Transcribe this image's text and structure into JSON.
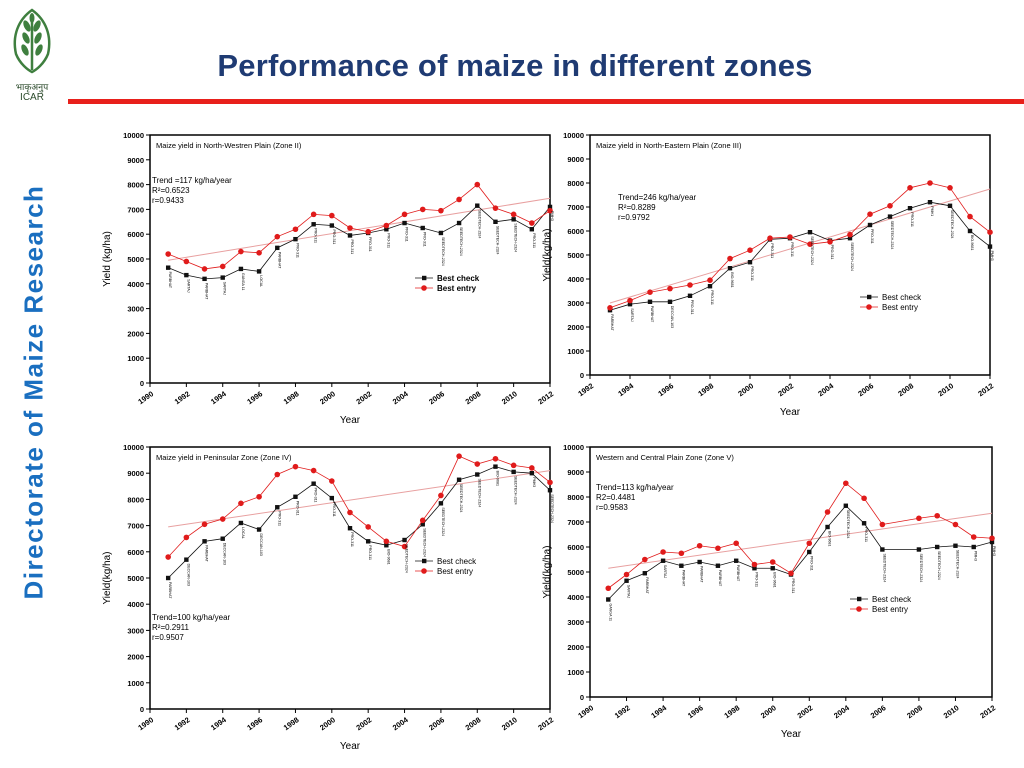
{
  "header": {
    "title": "Performance of maize in different zones",
    "logo_text_top": "भाकृअनुप",
    "logo_text_bottom": "ICAR",
    "side_title": "Directorate of Maize Research"
  },
  "colors": {
    "title": "#1f3b73",
    "divider": "#e8201b",
    "side_title": "#1a6fc0",
    "best_check": "#111111",
    "best_entry": "#e01b1b",
    "trend": "#e8a0a0",
    "logo_green": "#3f7f3f"
  },
  "chart_data": [
    {
      "type": "line",
      "title": "Maize yield in North-Westren Plain (Zone II)",
      "xlabel": "Year",
      "ylabel": "Yield (kg/ha)",
      "xlim": [
        1990,
        2012
      ],
      "ylim": [
        0,
        10000
      ],
      "xticks": [
        1990,
        1992,
        1994,
        1996,
        1998,
        2000,
        2002,
        2004,
        2006,
        2008,
        2010,
        2012
      ],
      "yticks": [
        0,
        1000,
        2000,
        3000,
        4000,
        5000,
        6000,
        7000,
        8000,
        9000,
        10000
      ],
      "annotation": [
        "Trend =117 kg/ha/year",
        "R²=0.6523",
        "r=0.9433"
      ],
      "legend": "center-right",
      "x": [
        1991,
        1992,
        1993,
        1994,
        1995,
        1996,
        1997,
        1998,
        1999,
        2000,
        2001,
        2002,
        2003,
        2004,
        2005,
        2006,
        2007,
        2008,
        2009,
        2010,
        2011,
        2012
      ],
      "series": [
        {
          "name": "Best check",
          "marker": "square",
          "values": [
            4650,
            4350,
            4200,
            4250,
            4600,
            4500,
            5450,
            5800,
            6400,
            6350,
            5950,
            6050,
            6200,
            6450,
            6250,
            6050,
            6450,
            7150,
            6500,
            6600,
            6200,
            7100
          ]
        },
        {
          "name": "Best entry",
          "marker": "circle",
          "values": [
            5200,
            4900,
            4600,
            4700,
            5300,
            5250,
            5900,
            6200,
            6800,
            6750,
            6250,
            6100,
            6350,
            6800,
            7000,
            6950,
            7400,
            8000,
            7050,
            6800,
            6450,
            6950
          ]
        }
      ],
      "trend": [
        4950,
        7450
      ],
      "point_labels": [
        "PARBHAT",
        "SARTAJ",
        "PARBHAT",
        "SARTAJ",
        "GANGA 11",
        "LOCAL",
        "PARBHAT",
        "PRO-311",
        "PRO-311",
        "PRO-311",
        "PRO-311",
        "PRO-311",
        "PRO-311",
        "PRO-311",
        "PRO-311",
        "SEEDTECH-2324",
        "SEEDTECH-2324",
        "SEEDTECH-2324",
        "SEEDTECH-2324",
        "SEEDTECH-2324",
        "PRO-311",
        "PMH3"
      ]
    },
    {
      "type": "line",
      "title": "Maize yield in North-Eastern Plain (Zone III)",
      "xlabel": "Year",
      "ylabel": "Yield(kg/ha)",
      "xlim": [
        1992,
        2012
      ],
      "ylim": [
        0,
        10000
      ],
      "xticks": [
        1992,
        1994,
        1996,
        1998,
        2000,
        2002,
        2004,
        2006,
        2008,
        2010,
        2012
      ],
      "yticks": [
        0,
        1000,
        2000,
        3000,
        4000,
        5000,
        6000,
        7000,
        8000,
        9000,
        10000
      ],
      "annotation": [
        "Trend=246 kg/ha/year",
        "R²=0.8289",
        "r=0.9792"
      ],
      "legend": "bottom-right",
      "x": [
        1993,
        1994,
        1995,
        1996,
        1997,
        1998,
        1999,
        2000,
        2001,
        2002,
        2003,
        2004,
        2005,
        2006,
        2007,
        2008,
        2009,
        2010,
        2011,
        2012
      ],
      "series": [
        {
          "name": "Best check",
          "marker": "square",
          "values": [
            2700,
            2950,
            3050,
            3050,
            3300,
            3700,
            4450,
            4700,
            5650,
            5700,
            5950,
            5600,
            5700,
            6250,
            6600,
            6950,
            7200,
            7050,
            6000,
            5350
          ]
        },
        {
          "name": "Best entry",
          "marker": "circle",
          "values": [
            2800,
            3100,
            3450,
            3600,
            3750,
            3950,
            4850,
            5200,
            5700,
            5750,
            5450,
            5550,
            5850,
            6700,
            7050,
            7800,
            8000,
            7800,
            6600,
            5950
          ]
        }
      ],
      "trend": [
        3000,
        7750
      ],
      "point_labels": [
        "PARBHAT",
        "SARTAJ",
        "PARBHAT",
        "DECCAN-103",
        "PRO-311",
        "PRO-311",
        "BIO-9681",
        "PRO-311",
        "PRO-311",
        "PRO-311",
        "SEEDTECH-2324",
        "PRO-311",
        "SEEDTECH-2324",
        "PRO-311",
        "SEEDTECH-2324",
        "PRO-311",
        "PMH1",
        "SEEDTECH-2324",
        "BIO-9681",
        "PMH3"
      ]
    },
    {
      "type": "line",
      "title": "Maize yield in Peninsular Zone (Zone IV)",
      "xlabel": "Year",
      "ylabel": "Yield(kg/ha)",
      "xlim": [
        1990,
        2012
      ],
      "ylim": [
        0,
        10000
      ],
      "xticks": [
        1990,
        1992,
        1994,
        1996,
        1998,
        2000,
        2002,
        2004,
        2006,
        2008,
        2010,
        2012
      ],
      "yticks": [
        0,
        1000,
        2000,
        3000,
        4000,
        5000,
        6000,
        7000,
        8000,
        9000,
        10000
      ],
      "annotation": [
        "Trend=100 kg/ha/year",
        "R²=0.2911",
        "r=0.9507"
      ],
      "legend": "center-right",
      "x": [
        1991,
        1992,
        1993,
        1994,
        1995,
        1996,
        1997,
        1998,
        1999,
        2000,
        2001,
        2002,
        2003,
        2004,
        2005,
        2006,
        2007,
        2008,
        2009,
        2010,
        2011,
        2012
      ],
      "series": [
        {
          "name": "Best check",
          "marker": "square",
          "values": [
            5000,
            5700,
            6400,
            6500,
            7100,
            6850,
            7700,
            8100,
            8600,
            8050,
            6900,
            6400,
            6250,
            6450,
            7050,
            7850,
            8750,
            8950,
            9250,
            9050,
            9000,
            8350
          ]
        },
        {
          "name": "Best entry",
          "marker": "circle",
          "values": [
            5800,
            6550,
            7050,
            7250,
            7850,
            8100,
            8950,
            9250,
            9100,
            8700,
            7500,
            6950,
            6400,
            6200,
            7200,
            8150,
            9650,
            9350,
            9550,
            9300,
            9200,
            8650
          ]
        }
      ],
      "trend": [
        6950,
        9100
      ],
      "point_labels": [
        "PARBHAT",
        "DECCAN-103",
        "PARBHAT",
        "DECCAN-103",
        "LOCAL",
        "DECCAN-103",
        "PRO-311",
        "PRO-311",
        "PRO-311",
        "PRO-311",
        "PRO-311",
        "PRO-311",
        "BIO-9681",
        "SEEDTECH-2324",
        "SEEDTECH-2324",
        "SEEDTECH-2324",
        "SEEDTECH-2324",
        "SEEDTECH-2324",
        "BIO-9681",
        "SEEDTECH-2324",
        "PMH3",
        "SEEDTECH-2324"
      ]
    },
    {
      "type": "line",
      "title": "Western and Central Plain Zone (Zone V)",
      "xlabel": "Year",
      "ylabel": "Yield(kg/ha)",
      "xlim": [
        1990,
        2012
      ],
      "ylim": [
        0,
        10000
      ],
      "xticks": [
        1990,
        1992,
        1994,
        1996,
        1998,
        2000,
        2002,
        2004,
        2006,
        2008,
        2010,
        2012
      ],
      "yticks": [
        0,
        1000,
        2000,
        3000,
        4000,
        5000,
        6000,
        7000,
        8000,
        9000,
        10000
      ],
      "annotation": [
        "Trend=113 kg/ha/year",
        "R2=0.4481",
        "r=0.9583"
      ],
      "legend": "bottom-right",
      "x": [
        1991,
        1992,
        1993,
        1994,
        1995,
        1996,
        1997,
        1998,
        1999,
        2000,
        2001,
        2002,
        2003,
        2004,
        2005,
        2006,
        2008,
        2009,
        2010,
        2011,
        2012
      ],
      "series": [
        {
          "name": "Best check",
          "marker": "square",
          "values": [
            3900,
            4650,
            4950,
            5450,
            5250,
            5400,
            5250,
            5450,
            5150,
            5150,
            4900,
            5800,
            6800,
            7650,
            6950,
            5900,
            5900,
            6000,
            6050,
            6000,
            6200
          ]
        },
        {
          "name": "Best entry",
          "marker": "circle",
          "values": [
            4350,
            4900,
            5500,
            5800,
            5750,
            6050,
            5950,
            6150,
            5300,
            5400,
            4950,
            6150,
            7400,
            8550,
            7950,
            6900,
            7150,
            7250,
            6900,
            6400,
            6350
          ]
        }
      ],
      "trend": [
        5150,
        7350
      ],
      "point_labels": [
        "GANGA 11",
        "SARTAJ",
        "PARBHAT",
        "SARTAJ",
        "PARBHAT",
        "PARBHAT",
        "PARBHAT",
        "PARBHAT",
        "PRO-311",
        "BIO-9681",
        "PRO-311",
        "PRO-311",
        "BIO-9681",
        "SEEDTECH-2324",
        "PRO-311",
        "SEEDTECH-2324",
        "SEEDTECH-2324",
        "SEEDTECH-2324",
        "SEEDTECH-2324",
        "PMH3",
        "PMH3"
      ]
    }
  ]
}
